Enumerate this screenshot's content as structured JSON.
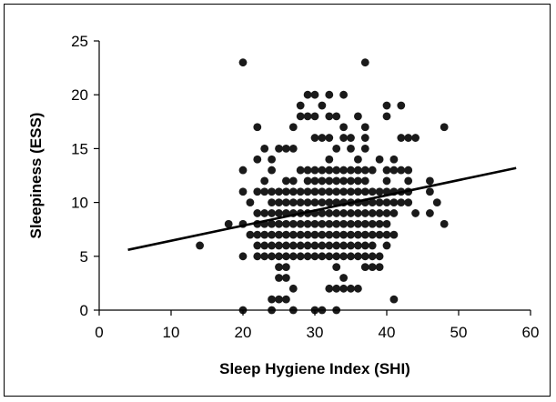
{
  "chart_data": {
    "type": "scatter",
    "title": "",
    "xlabel": "Sleep Hygiene Index (SHI)",
    "ylabel": "Sleepiness (ESS)",
    "xlim": [
      0,
      60
    ],
    "ylim": [
      0,
      25
    ],
    "x_ticks": [
      "0",
      "10",
      "20",
      "30",
      "40",
      "50",
      "60"
    ],
    "y_ticks": [
      "0",
      "5",
      "10",
      "15",
      "20",
      "25"
    ],
    "grid": false,
    "legend": "none",
    "colors": {
      "points": "#1a1a1a",
      "trendline": "#000000",
      "axes": "#000000"
    },
    "trendline": {
      "x": [
        4,
        58
      ],
      "y": [
        5.6,
        13.2
      ]
    },
    "series": [
      {
        "points": [
          [
            14,
            6
          ],
          [
            18,
            8
          ],
          [
            20,
            23
          ],
          [
            20,
            13
          ],
          [
            20,
            11
          ],
          [
            20,
            8
          ],
          [
            20,
            5
          ],
          [
            20,
            0
          ],
          [
            21,
            10
          ],
          [
            21,
            7
          ],
          [
            22,
            17
          ],
          [
            22,
            11
          ],
          [
            22,
            9
          ],
          [
            22,
            8
          ],
          [
            22,
            7
          ],
          [
            22,
            6
          ],
          [
            22,
            5
          ],
          [
            22,
            14
          ],
          [
            23,
            15
          ],
          [
            23,
            12
          ],
          [
            23,
            11
          ],
          [
            23,
            9
          ],
          [
            23,
            8
          ],
          [
            23,
            7
          ],
          [
            23,
            6
          ],
          [
            23,
            5
          ],
          [
            24,
            14
          ],
          [
            24,
            13
          ],
          [
            24,
            11
          ],
          [
            24,
            10
          ],
          [
            24,
            9
          ],
          [
            24,
            8
          ],
          [
            24,
            7
          ],
          [
            24,
            6
          ],
          [
            24,
            5
          ],
          [
            24,
            1
          ],
          [
            24,
            0
          ],
          [
            25,
            15
          ],
          [
            25,
            11
          ],
          [
            25,
            10
          ],
          [
            25,
            9
          ],
          [
            25,
            8
          ],
          [
            25,
            7
          ],
          [
            25,
            6
          ],
          [
            25,
            5
          ],
          [
            25,
            4
          ],
          [
            25,
            3
          ],
          [
            25,
            1
          ],
          [
            26,
            15
          ],
          [
            26,
            12
          ],
          [
            26,
            11
          ],
          [
            26,
            10
          ],
          [
            26,
            9
          ],
          [
            26,
            8
          ],
          [
            26,
            7
          ],
          [
            26,
            6
          ],
          [
            26,
            5
          ],
          [
            26,
            4
          ],
          [
            26,
            3
          ],
          [
            26,
            1
          ],
          [
            27,
            17
          ],
          [
            27,
            15
          ],
          [
            27,
            12
          ],
          [
            27,
            11
          ],
          [
            27,
            10
          ],
          [
            27,
            9
          ],
          [
            27,
            8
          ],
          [
            27,
            7
          ],
          [
            27,
            6
          ],
          [
            27,
            5
          ],
          [
            27,
            2
          ],
          [
            27,
            0
          ],
          [
            28,
            19
          ],
          [
            28,
            18
          ],
          [
            28,
            13
          ],
          [
            28,
            11
          ],
          [
            28,
            10
          ],
          [
            28,
            9
          ],
          [
            28,
            8
          ],
          [
            28,
            7
          ],
          [
            28,
            6
          ],
          [
            28,
            5
          ],
          [
            29,
            20
          ],
          [
            29,
            18
          ],
          [
            29,
            13
          ],
          [
            29,
            12
          ],
          [
            29,
            11
          ],
          [
            29,
            10
          ],
          [
            29,
            9
          ],
          [
            29,
            8
          ],
          [
            29,
            7
          ],
          [
            29,
            6
          ],
          [
            29,
            5
          ],
          [
            30,
            20
          ],
          [
            30,
            18
          ],
          [
            30,
            16
          ],
          [
            30,
            13
          ],
          [
            30,
            12
          ],
          [
            30,
            11
          ],
          [
            30,
            10
          ],
          [
            30,
            9
          ],
          [
            30,
            8
          ],
          [
            30,
            7
          ],
          [
            30,
            6
          ],
          [
            30,
            5
          ],
          [
            30,
            0
          ],
          [
            31,
            19
          ],
          [
            31,
            16
          ],
          [
            31,
            13
          ],
          [
            31,
            12
          ],
          [
            31,
            11
          ],
          [
            31,
            10
          ],
          [
            31,
            9
          ],
          [
            31,
            8
          ],
          [
            31,
            7
          ],
          [
            31,
            6
          ],
          [
            31,
            5
          ],
          [
            31,
            0
          ],
          [
            32,
            20
          ],
          [
            32,
            18
          ],
          [
            32,
            16
          ],
          [
            32,
            14
          ],
          [
            32,
            13
          ],
          [
            32,
            12
          ],
          [
            32,
            11
          ],
          [
            32,
            10
          ],
          [
            32,
            9
          ],
          [
            32,
            8
          ],
          [
            32,
            7
          ],
          [
            32,
            6
          ],
          [
            32,
            5
          ],
          [
            32,
            2
          ],
          [
            33,
            18
          ],
          [
            33,
            15
          ],
          [
            33,
            13
          ],
          [
            33,
            12
          ],
          [
            33,
            11
          ],
          [
            33,
            10
          ],
          [
            33,
            9
          ],
          [
            33,
            8
          ],
          [
            33,
            7
          ],
          [
            33,
            6
          ],
          [
            33,
            5
          ],
          [
            33,
            4
          ],
          [
            33,
            2
          ],
          [
            33,
            0
          ],
          [
            34,
            20
          ],
          [
            34,
            17
          ],
          [
            34,
            16
          ],
          [
            34,
            13
          ],
          [
            34,
            12
          ],
          [
            34,
            11
          ],
          [
            34,
            10
          ],
          [
            34,
            9
          ],
          [
            34,
            8
          ],
          [
            34,
            7
          ],
          [
            34,
            6
          ],
          [
            34,
            5
          ],
          [
            34,
            3
          ],
          [
            34,
            2
          ],
          [
            35,
            16
          ],
          [
            35,
            15
          ],
          [
            35,
            13
          ],
          [
            35,
            12
          ],
          [
            35,
            11
          ],
          [
            35,
            10
          ],
          [
            35,
            9
          ],
          [
            35,
            8
          ],
          [
            35,
            7
          ],
          [
            35,
            6
          ],
          [
            35,
            5
          ],
          [
            35,
            2
          ],
          [
            36,
            18
          ],
          [
            36,
            14
          ],
          [
            36,
            13
          ],
          [
            36,
            12
          ],
          [
            36,
            11
          ],
          [
            36,
            10
          ],
          [
            36,
            9
          ],
          [
            36,
            8
          ],
          [
            36,
            7
          ],
          [
            36,
            6
          ],
          [
            36,
            5
          ],
          [
            36,
            2
          ],
          [
            37,
            23
          ],
          [
            37,
            17
          ],
          [
            37,
            16
          ],
          [
            37,
            15
          ],
          [
            37,
            13
          ],
          [
            37,
            12
          ],
          [
            37,
            11
          ],
          [
            37,
            10
          ],
          [
            37,
            9
          ],
          [
            37,
            8
          ],
          [
            37,
            7
          ],
          [
            37,
            6
          ],
          [
            37,
            5
          ],
          [
            37,
            4
          ],
          [
            38,
            13
          ],
          [
            38,
            11
          ],
          [
            38,
            10
          ],
          [
            38,
            9
          ],
          [
            38,
            8
          ],
          [
            38,
            7
          ],
          [
            38,
            6
          ],
          [
            38,
            5
          ],
          [
            38,
            4
          ],
          [
            39,
            14
          ],
          [
            39,
            11
          ],
          [
            39,
            10
          ],
          [
            39,
            9
          ],
          [
            39,
            8
          ],
          [
            39,
            7
          ],
          [
            39,
            5
          ],
          [
            39,
            4
          ],
          [
            40,
            19
          ],
          [
            40,
            18
          ],
          [
            40,
            13
          ],
          [
            40,
            12
          ],
          [
            40,
            11
          ],
          [
            40,
            10
          ],
          [
            40,
            9
          ],
          [
            40,
            8
          ],
          [
            40,
            7
          ],
          [
            40,
            6
          ],
          [
            41,
            14
          ],
          [
            41,
            13
          ],
          [
            41,
            11
          ],
          [
            41,
            10
          ],
          [
            41,
            9
          ],
          [
            41,
            7
          ],
          [
            41,
            1
          ],
          [
            42,
            19
          ],
          [
            42,
            16
          ],
          [
            42,
            13
          ],
          [
            42,
            11
          ],
          [
            42,
            10
          ],
          [
            43,
            16
          ],
          [
            43,
            13
          ],
          [
            43,
            12
          ],
          [
            43,
            11
          ],
          [
            43,
            10
          ],
          [
            44,
            16
          ],
          [
            44,
            9
          ],
          [
            46,
            12
          ],
          [
            46,
            11
          ],
          [
            46,
            9
          ],
          [
            47,
            10
          ],
          [
            48,
            17
          ],
          [
            48,
            8
          ]
        ]
      }
    ]
  }
}
